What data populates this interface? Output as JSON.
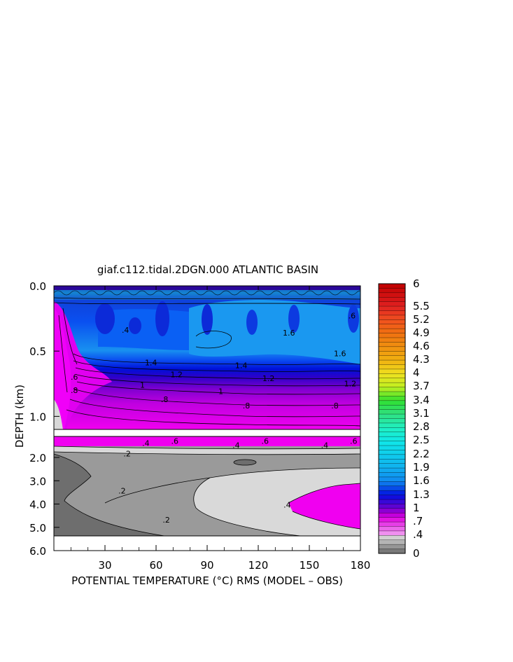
{
  "chart_data": {
    "type": "heatmap",
    "title": "giaf.c112.tidal.2DGN.000 ATLANTIC BASIN",
    "xlabel": "POTENTIAL TEMPERATURE (°C) RMS (MODEL – OBS)",
    "ylabel": "DEPTH (km)",
    "x_ticks": [
      "30",
      "60",
      "90",
      "120",
      "150",
      "180"
    ],
    "xlim": [
      0,
      180
    ],
    "upper_panel_y_ticks": [
      "0.0",
      "0.5",
      "1.0"
    ],
    "upper_panel_ylim": [
      0.0,
      1.1
    ],
    "lower_panel_y_ticks": [
      "2.0",
      "3.0",
      "4.0",
      "5.0",
      "6.0"
    ],
    "lower_panel_ylim": [
      1.0,
      6.0
    ],
    "colorbar_labels": [
      "6",
      "5.5",
      "5.2",
      "4.9",
      "4.6",
      "4.3",
      "4",
      "3.7",
      "3.4",
      "3.1",
      "2.8",
      "2.5",
      "2.2",
      "1.9",
      "1.6",
      "1.3",
      "1",
      ".7",
      ".4",
      "0"
    ],
    "contour_labels": [
      {
        "text": ".4",
        "x": 42,
        "depth": 0.36
      },
      {
        "text": "1.4",
        "x": 57,
        "depth": 0.61
      },
      {
        "text": "1.2",
        "x": 72,
        "depth": 0.7
      },
      {
        "text": "1",
        "x": 52,
        "depth": 0.78
      },
      {
        "text": ".8",
        "x": 65,
        "depth": 0.89
      },
      {
        "text": ".6",
        "x": 12,
        "depth": 0.72
      },
      {
        "text": ".8",
        "x": 12,
        "depth": 0.82
      },
      {
        "text": "1.6",
        "x": 138,
        "depth": 0.38
      },
      {
        "text": ".6",
        "x": 175,
        "depth": 0.25
      },
      {
        "text": "1.4",
        "x": 110,
        "depth": 0.63
      },
      {
        "text": "1.2",
        "x": 126,
        "depth": 0.73
      },
      {
        "text": "1",
        "x": 98,
        "depth": 0.83
      },
      {
        "text": ".8",
        "x": 113,
        "depth": 0.94
      },
      {
        "text": "1.6",
        "x": 168,
        "depth": 0.54
      },
      {
        "text": "1.2",
        "x": 174,
        "depth": 0.77
      },
      {
        "text": ".8",
        "x": 165,
        "depth": 0.94
      },
      {
        "text": ".4",
        "x": 54,
        "depth": 1.45
      },
      {
        "text": ".6",
        "x": 71,
        "depth": 1.35
      },
      {
        "text": ".4",
        "x": 107,
        "depth": 1.55
      },
      {
        "text": ".6",
        "x": 124,
        "depth": 1.35
      },
      {
        "text": ".4",
        "x": 159,
        "depth": 1.55
      },
      {
        "text": ".6",
        "x": 176,
        "depth": 1.35
      },
      {
        "text": ".2",
        "x": 43,
        "depth": 1.95
      },
      {
        "text": ".2",
        "x": 40,
        "depth": 3.55
      },
      {
        "text": ".2",
        "x": 66,
        "depth": 4.8
      },
      {
        "text": ".4",
        "x": 137,
        "depth": 4.15
      }
    ],
    "upper_panel_field": {
      "description_range": "RMS roughly 0.4–1.9 in upper 1 km; highest (~1.6–1.9) near 0.3–0.6 km east of 80, decreasing to ~0.6–0.8 below 0.9 km",
      "levels": [
        0.4,
        0.6,
        0.8,
        1.0,
        1.2,
        1.4,
        1.6
      ]
    },
    "lower_panel_field": {
      "levels": [
        0.2,
        0.4,
        0.6
      ],
      "high_patch": {
        "value": 0.6,
        "x_range": [
          137,
          180
        ],
        "depth_range": [
          3.2,
          5.1
        ]
      }
    }
  }
}
